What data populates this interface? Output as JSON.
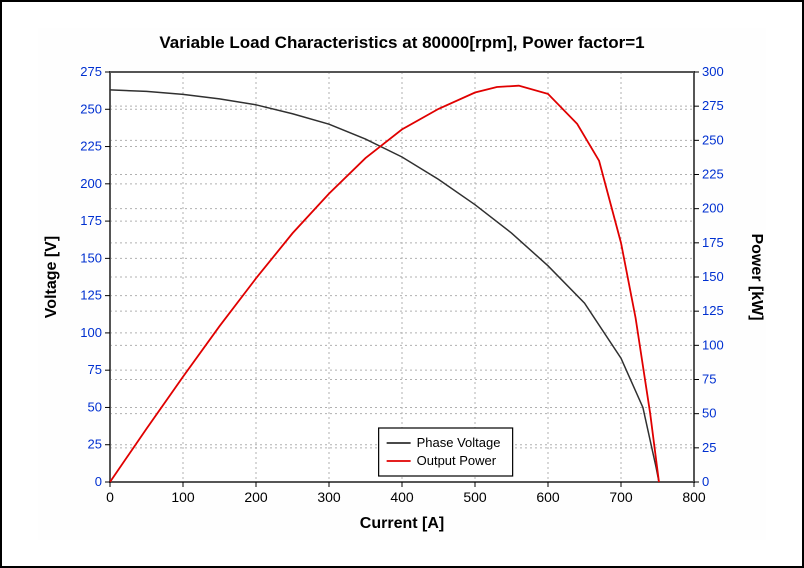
{
  "chart": {
    "type": "line",
    "title": "Variable Load Characteristics at 80000[rpm], Power factor=1",
    "title_fontsize": 17,
    "title_fontweight": "bold",
    "background_color": "#ffffff",
    "plot_background_color": "#ffffff",
    "grid_color": "#b0b0b0",
    "grid_dash": "2,3",
    "grid_on": true,
    "frame_color": "#000000",
    "plot_border_color": "#555555",
    "x_axis": {
      "label": "Current [A]",
      "label_fontsize": 16,
      "label_fontweight": "bold",
      "label_color": "#000000",
      "xlim": [
        0,
        800
      ],
      "ticks": [
        0,
        100,
        200,
        300,
        400,
        500,
        600,
        700,
        800
      ],
      "tick_fontsize": 14,
      "tick_color": "#000000"
    },
    "y_axis_left": {
      "label": "Voltage [V]",
      "label_fontsize": 16,
      "label_fontweight": "bold",
      "label_color": "#000000",
      "ylim": [
        0,
        275
      ],
      "ticks": [
        0,
        25,
        50,
        75,
        100,
        125,
        150,
        175,
        200,
        225,
        250,
        275
      ],
      "tick_fontsize": 13,
      "tick_color": "#0030d0"
    },
    "y_axis_right": {
      "label": "Power [kW]",
      "label_fontsize": 16,
      "label_fontweight": "bold",
      "label_color": "#000000",
      "ylim": [
        0,
        300
      ],
      "ticks": [
        0,
        25,
        50,
        75,
        100,
        125,
        150,
        175,
        200,
        225,
        250,
        275,
        300
      ],
      "tick_fontsize": 13,
      "tick_color": "#0030d0"
    },
    "series": [
      {
        "name": "Phase Voltage",
        "color": "#303030",
        "line_width": 1.5,
        "axis": "left",
        "points": [
          [
            0,
            263
          ],
          [
            50,
            262
          ],
          [
            100,
            260
          ],
          [
            150,
            257
          ],
          [
            200,
            253
          ],
          [
            250,
            247
          ],
          [
            300,
            240
          ],
          [
            350,
            230
          ],
          [
            400,
            218
          ],
          [
            450,
            203
          ],
          [
            500,
            186
          ],
          [
            550,
            167
          ],
          [
            600,
            145
          ],
          [
            650,
            120
          ],
          [
            700,
            83
          ],
          [
            730,
            50
          ],
          [
            748,
            10
          ],
          [
            752,
            0
          ]
        ]
      },
      {
        "name": "Output Power",
        "color": "#e00000",
        "line_width": 1.8,
        "axis": "right",
        "points": [
          [
            0,
            0
          ],
          [
            50,
            39
          ],
          [
            100,
            77
          ],
          [
            150,
            114
          ],
          [
            200,
            149
          ],
          [
            250,
            182
          ],
          [
            300,
            211
          ],
          [
            350,
            237
          ],
          [
            400,
            258
          ],
          [
            450,
            273
          ],
          [
            500,
            285
          ],
          [
            530,
            289
          ],
          [
            560,
            290
          ],
          [
            600,
            284
          ],
          [
            640,
            262
          ],
          [
            670,
            235
          ],
          [
            700,
            175
          ],
          [
            720,
            120
          ],
          [
            740,
            50
          ],
          [
            752,
            0
          ]
        ]
      }
    ],
    "legend": {
      "position": "lower-middle-right",
      "border_color": "#000000",
      "background": "#ffffff",
      "items": [
        {
          "label": "Phase Voltage",
          "color": "#303030"
        },
        {
          "label": "Output Power",
          "color": "#e00000"
        }
      ],
      "fontsize": 13
    }
  }
}
